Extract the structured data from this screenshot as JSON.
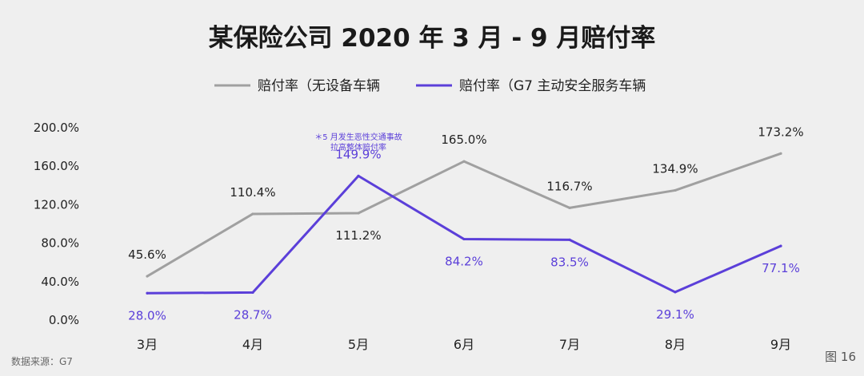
{
  "chart_data": {
    "type": "line",
    "title": "某保险公司 2020 年 3 月 - 9 月赔付率",
    "categories": [
      "3月",
      "4月",
      "5月",
      "6月",
      "7月",
      "8月",
      "9月"
    ],
    "series": [
      {
        "name": "赔付率（无设备车辆",
        "values": [
          45.6,
          110.4,
          111.2,
          165.0,
          116.7,
          134.9,
          173.2
        ],
        "labels": [
          "45.6%",
          "110.4%",
          "111.2%",
          "165.0%",
          "116.7%",
          "134.9%",
          "173.2%"
        ],
        "color": "#a0a0a0"
      },
      {
        "name": "赔付率（G7 主动安全服务车辆",
        "values": [
          28.0,
          28.7,
          149.9,
          84.2,
          83.5,
          29.1,
          77.1
        ],
        "labels": [
          "28.0%",
          "28.7%",
          "149.9%",
          "84.2%",
          "83.5%",
          "29.1%",
          "77.1%"
        ],
        "color": "#5b3fd9"
      }
    ],
    "yticks": [
      "0.0%",
      "40.0%",
      "80.0%",
      "120.0%",
      "160.0%",
      "200.0%"
    ],
    "ylim": [
      0,
      200
    ],
    "legend_position": "top",
    "grid": false,
    "annotation": {
      "category": "5月",
      "lines": [
        "＊5 月发生恶性交通事故",
        "拉高整体赔付率"
      ]
    }
  },
  "footer": {
    "source": "数据来源：G7",
    "figure_label": "图 16"
  }
}
